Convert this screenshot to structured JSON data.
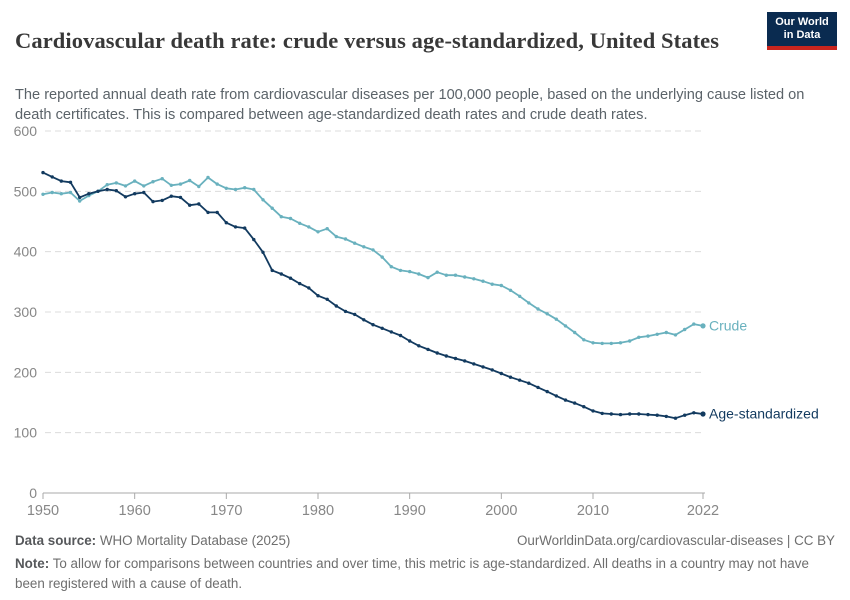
{
  "header": {
    "title": "Cardiovascular death rate: crude versus age-standardized, United States",
    "subtitle": "The reported annual death rate from cardiovascular diseases per 100,000 people, based on the underlying cause listed on death certificates. This is compared between age-standardized death rates and crude death rates.",
    "logo": {
      "line1": "Our World",
      "line2": "in Data",
      "bg_color": "#0a2b50",
      "accent_color": "#c9251d"
    }
  },
  "chart_data": {
    "type": "line",
    "title": "Cardiovascular death rate: crude versus age-standardized, United States",
    "xlabel": "",
    "ylabel": "",
    "ylim": [
      0,
      600
    ],
    "yticks": [
      0,
      100,
      200,
      300,
      400,
      500,
      600
    ],
    "xticks": [
      1950,
      1960,
      1970,
      1980,
      1990,
      2000,
      2010,
      2022
    ],
    "grid": "horizontal-dashed",
    "legend_position": "end-of-line-labels",
    "x": [
      1950,
      1951,
      1952,
      1953,
      1954,
      1955,
      1956,
      1957,
      1958,
      1959,
      1960,
      1961,
      1962,
      1963,
      1964,
      1965,
      1966,
      1967,
      1968,
      1969,
      1970,
      1971,
      1972,
      1973,
      1974,
      1975,
      1976,
      1977,
      1978,
      1979,
      1980,
      1981,
      1982,
      1983,
      1984,
      1985,
      1986,
      1987,
      1988,
      1989,
      1990,
      1991,
      1992,
      1993,
      1994,
      1995,
      1996,
      1997,
      1998,
      1999,
      2000,
      2001,
      2002,
      2003,
      2004,
      2005,
      2006,
      2007,
      2008,
      2009,
      2010,
      2011,
      2012,
      2013,
      2014,
      2015,
      2016,
      2017,
      2018,
      2019,
      2020,
      2021,
      2022
    ],
    "series": [
      {
        "name": "Crude",
        "color": "#69b1be",
        "values": [
          495,
          498,
          496,
          498,
          484,
          493,
          500,
          511,
          514,
          509,
          517,
          509,
          516,
          521,
          510,
          512,
          518,
          508,
          523,
          512,
          505,
          503,
          506,
          503,
          486,
          472,
          458,
          455,
          447,
          441,
          433,
          438,
          425,
          421,
          414,
          408,
          403,
          391,
          375,
          369,
          367,
          363,
          357,
          366,
          361,
          361,
          358,
          355,
          351,
          346,
          344,
          336,
          326,
          315,
          305,
          297,
          288,
          277,
          266,
          254,
          249,
          248,
          248,
          249,
          252,
          258,
          260,
          263,
          266,
          262,
          271,
          280,
          277
        ]
      },
      {
        "name": "Age-standardized",
        "color": "#123a5f",
        "values": [
          531,
          524,
          517,
          515,
          490,
          496,
          500,
          503,
          501,
          491,
          496,
          498,
          483,
          485,
          492,
          490,
          477,
          479,
          465,
          465,
          448,
          441,
          439,
          420,
          399,
          369,
          363,
          356,
          347,
          340,
          327,
          321,
          310,
          301,
          296,
          287,
          279,
          273,
          267,
          261,
          252,
          244,
          238,
          232,
          227,
          223,
          219,
          214,
          209,
          204,
          198,
          192,
          187,
          182,
          175,
          168,
          161,
          154,
          149,
          143,
          136,
          132,
          131,
          130,
          131,
          131,
          130,
          129,
          127,
          124,
          129,
          133,
          131
        ]
      }
    ]
  },
  "footer": {
    "datasource_label": "Data source:",
    "datasource_value": " WHO Mortality Database (2025)",
    "link": "OurWorldinData.org/cardiovascular-diseases | CC BY",
    "note_label": "Note:",
    "note_text": " To allow for comparisons between countries and over time, this metric is age-standardized. All deaths in a country may not have been registered with a cause of death."
  }
}
